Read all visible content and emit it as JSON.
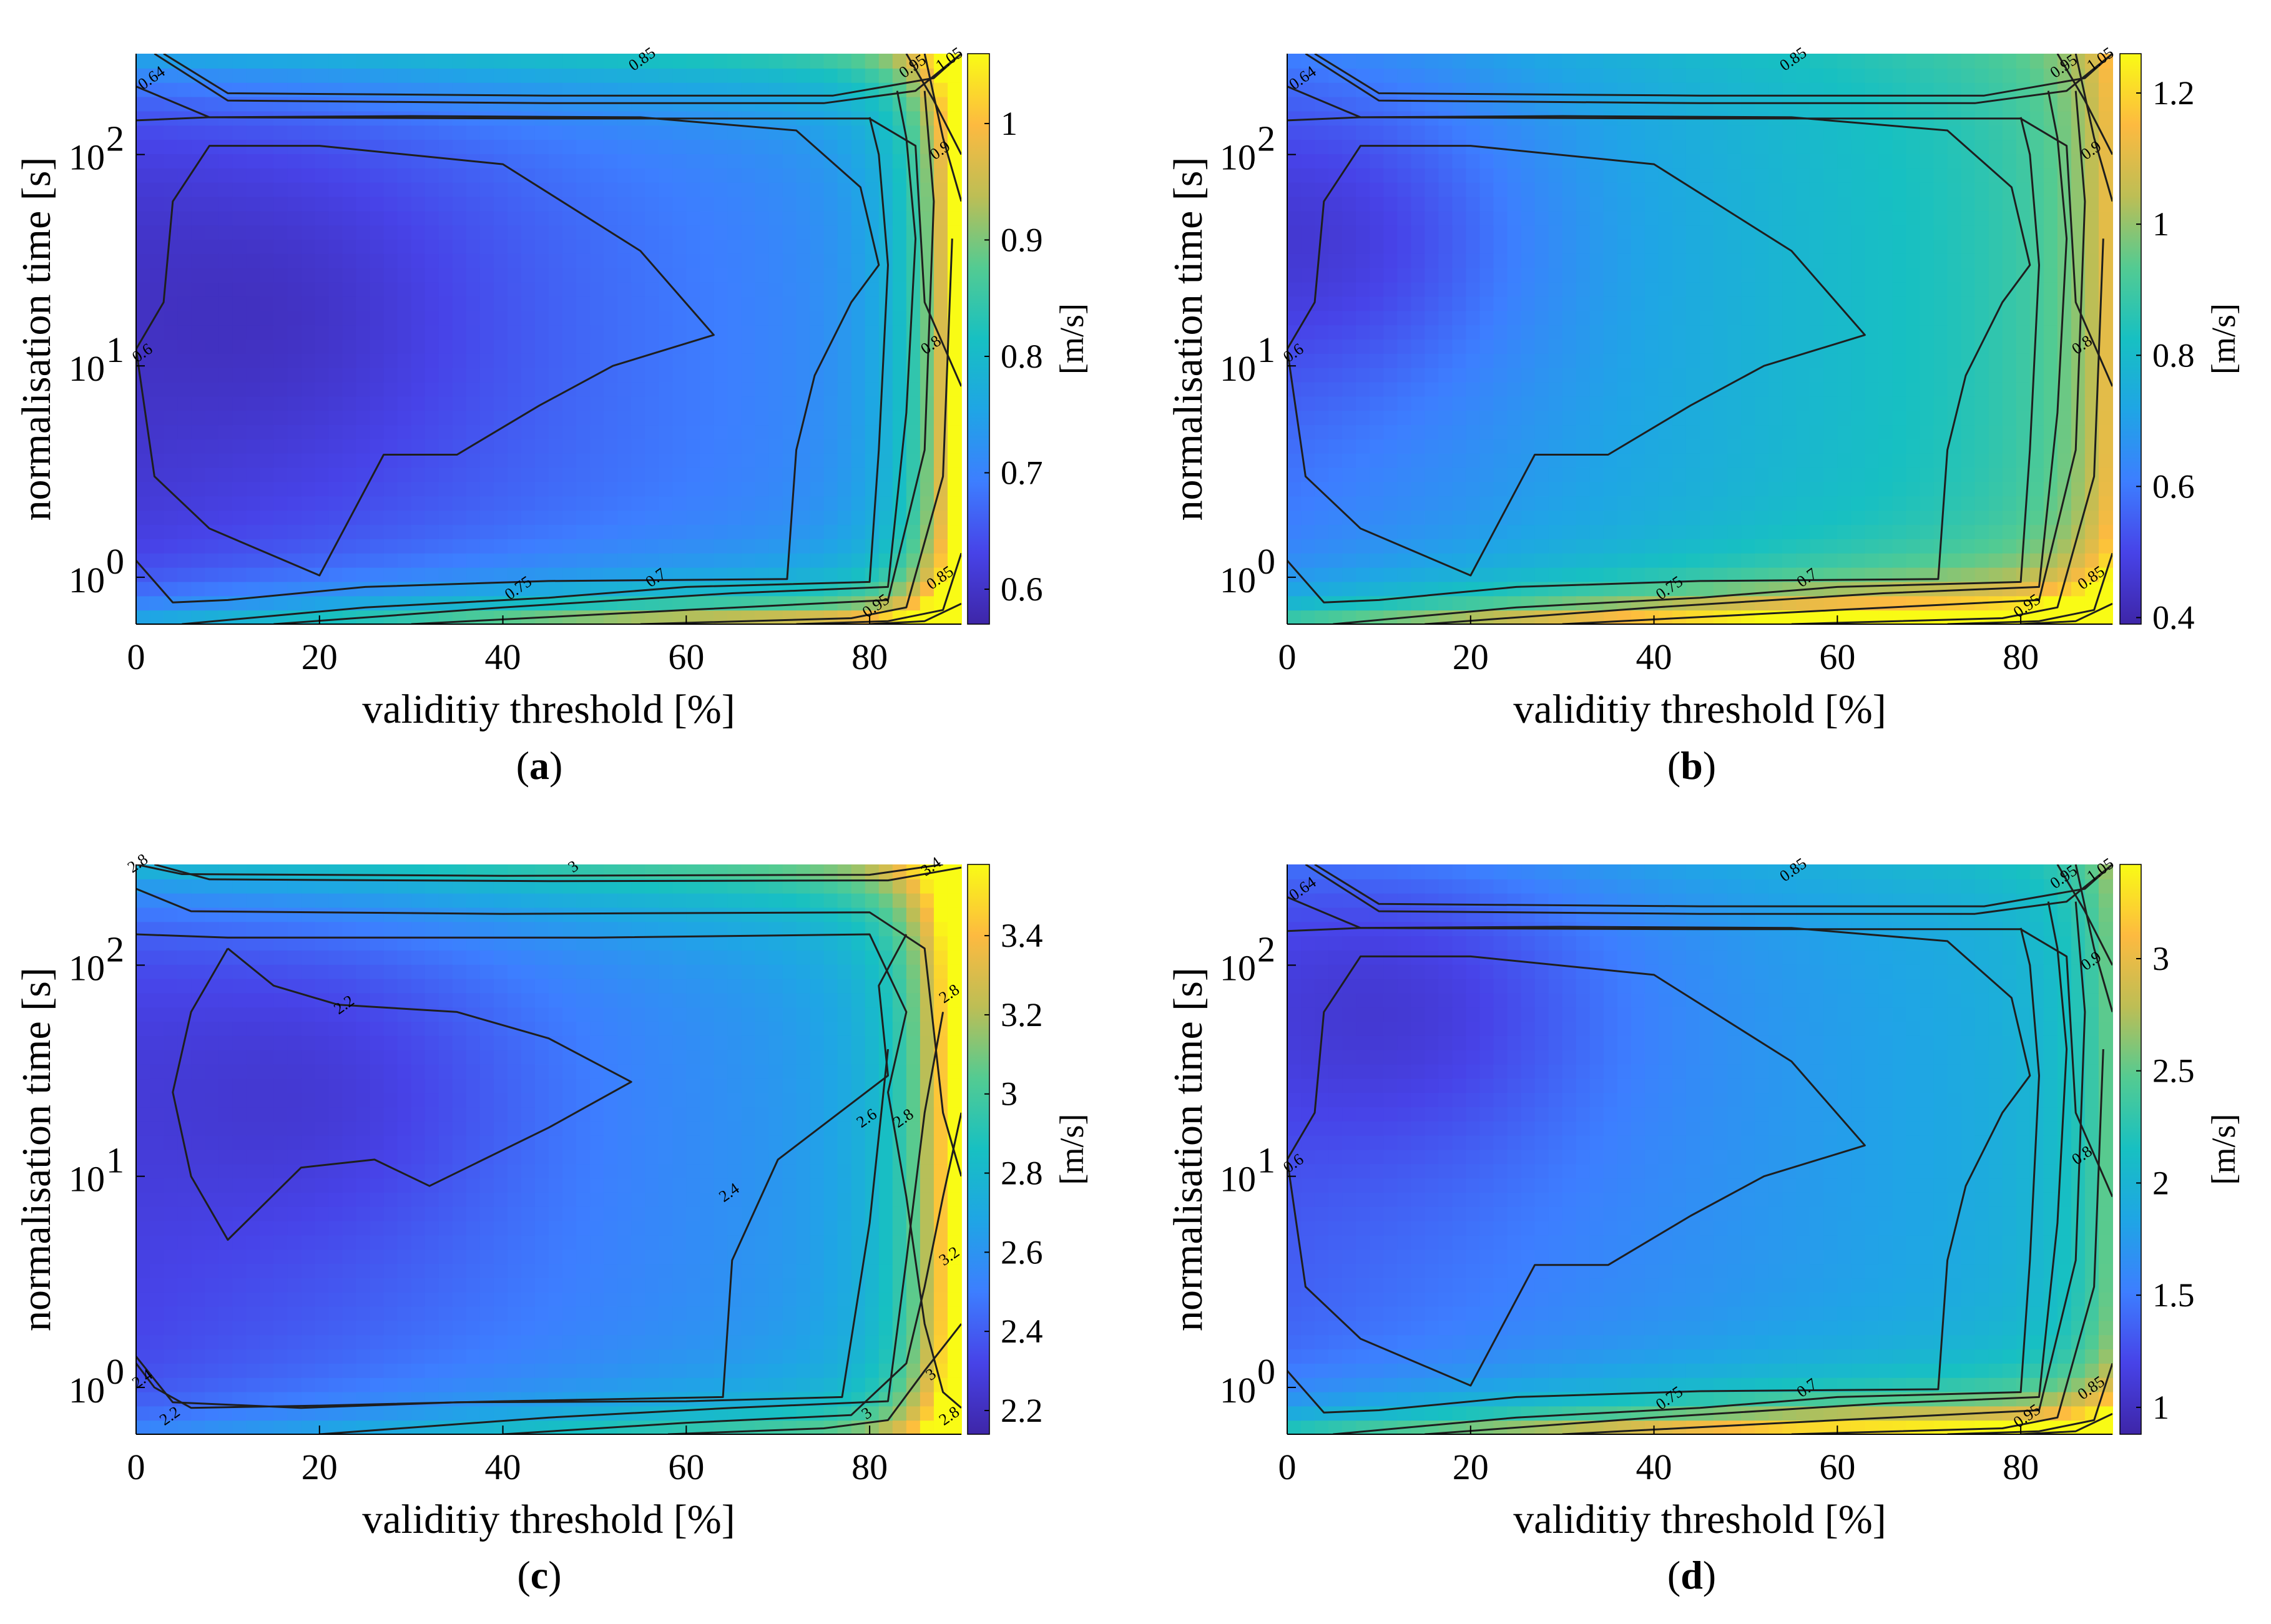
{
  "figure_type": "contour panels",
  "colors": {
    "colormap": [
      "#3e26a8",
      "#4743e8",
      "#3d7eff",
      "#1fa5e5",
      "#17c0c2",
      "#53cb92",
      "#bdbe55",
      "#fdba40",
      "#f9fb15"
    ],
    "contour_line": "#1e1e1e",
    "axis": "#000000"
  },
  "chart_data": [
    {
      "type": "heatmap",
      "subtype": "filled contour",
      "caption_letter": "a",
      "xlabel": "validitiy threshold [%]",
      "ylabel": "normalisation time [s]",
      "colorbar_label": "[m/s]",
      "xlim": [
        0,
        90
      ],
      "x_ticks": [
        0,
        20,
        40,
        60,
        80
      ],
      "x_tick_labels": [
        "0",
        "20",
        "40",
        "60",
        "80"
      ],
      "y_scale": "log",
      "ylim": [
        0.6,
        300
      ],
      "y_ticks": [
        1,
        10,
        100
      ],
      "y_tick_labels": [
        "10",
        "10",
        "10"
      ],
      "y_tick_exponents": [
        "0",
        "1",
        "2"
      ],
      "clim": [
        0.57,
        1.06
      ],
      "colorbar_ticks": [
        0.6,
        0.7,
        0.8,
        0.9,
        1.0
      ],
      "colorbar_tick_labels": [
        "0.6",
        "0.7",
        "0.8",
        "0.9",
        "1"
      ],
      "contour_labels": [
        {
          "text": "0.85",
          "x": 55.5,
          "y": 270
        },
        {
          "text": "0.64",
          "x": 2,
          "y": 220
        },
        {
          "text": "1.05",
          "x": 89,
          "y": 270
        },
        {
          "text": "0.95",
          "x": 85,
          "y": 250
        },
        {
          "text": "0.9",
          "x": 88,
          "y": 100
        },
        {
          "text": "0.6",
          "x": 1,
          "y": 11
        },
        {
          "text": "0.8",
          "x": 87,
          "y": 12
        },
        {
          "text": "0.75",
          "x": 42,
          "y": 0.85
        },
        {
          "text": "0.7",
          "x": 57,
          "y": 0.95
        },
        {
          "text": "0.85",
          "x": 88,
          "y": 0.95
        },
        {
          "text": "0.95",
          "x": 81,
          "y": 0.7
        }
      ],
      "field_model": {
        "base": 0.615,
        "basin_x": 18,
        "basin_logy": 1.25,
        "basin_depth": 0.04,
        "right_edge_rise": 0.4,
        "low_edge_rise": 0.3,
        "top_edge_rise": 0.15,
        "mid_slope": 0.0012
      }
    },
    {
      "type": "heatmap",
      "subtype": "filled contour",
      "caption_letter": "b",
      "xlabel": "validitiy threshold [%]",
      "ylabel": "normalisation time [s]",
      "colorbar_label": "[m/s]",
      "xlim": [
        0,
        90
      ],
      "x_ticks": [
        0,
        20,
        40,
        60,
        80
      ],
      "x_tick_labels": [
        "0",
        "20",
        "40",
        "60",
        "80"
      ],
      "y_scale": "log",
      "ylim": [
        0.6,
        300
      ],
      "y_ticks": [
        1,
        10,
        100
      ],
      "y_tick_labels": [
        "10",
        "10",
        "10"
      ],
      "y_tick_exponents": [
        "0",
        "1",
        "2"
      ],
      "clim": [
        0.39,
        1.26
      ],
      "colorbar_ticks": [
        0.4,
        0.6,
        0.8,
        1.0,
        1.2
      ],
      "colorbar_tick_labels": [
        "0.4",
        "0.6",
        "0.8",
        "1",
        "1.2"
      ],
      "contour_labels": [
        {
          "text": "0.85",
          "x": 55.5,
          "y": 270
        },
        {
          "text": "0.64",
          "x": 2,
          "y": 220
        },
        {
          "text": "1.05",
          "x": 89,
          "y": 270
        },
        {
          "text": "0.95",
          "x": 85,
          "y": 250
        },
        {
          "text": "0.9",
          "x": 88,
          "y": 100
        },
        {
          "text": "0.6",
          "x": 1,
          "y": 11
        },
        {
          "text": "0.8",
          "x": 87,
          "y": 12
        },
        {
          "text": "0.75",
          "x": 42,
          "y": 0.85
        },
        {
          "text": "0.7",
          "x": 57,
          "y": 0.95
        },
        {
          "text": "0.85",
          "x": 88,
          "y": 0.95
        },
        {
          "text": "0.95",
          "x": 81,
          "y": 0.7
        }
      ],
      "field_model": {
        "base": 0.6,
        "basin_x": 6,
        "basin_logy": 1.6,
        "basin_depth": 0.15,
        "right_edge_rise": 0.25,
        "low_edge_rise": 0.62,
        "top_edge_rise": 0.05,
        "mid_slope": 0.0033
      }
    },
    {
      "type": "heatmap",
      "subtype": "filled contour",
      "caption_letter": "c",
      "xlabel": "validitiy threshold [%]",
      "ylabel": "normalisation time [s]",
      "colorbar_label": "[m/s]",
      "xlim": [
        0,
        90
      ],
      "x_ticks": [
        0,
        20,
        40,
        60,
        80
      ],
      "x_tick_labels": [
        "0",
        "20",
        "40",
        "60",
        "80"
      ],
      "y_scale": "log",
      "ylim": [
        0.6,
        300
      ],
      "y_ticks": [
        1,
        10,
        100
      ],
      "y_tick_labels": [
        "10",
        "10",
        "10"
      ],
      "y_tick_exponents": [
        "0",
        "1",
        "2"
      ],
      "clim": [
        2.14,
        3.58
      ],
      "colorbar_ticks": [
        2.2,
        2.4,
        2.6,
        2.8,
        3.0,
        3.2,
        3.4
      ],
      "colorbar_tick_labels": [
        "2.2",
        "2.4",
        "2.6",
        "2.8",
        "3",
        "3.2",
        "3.4"
      ],
      "contour_labels": [
        {
          "text": "2.8",
          "x": 0.5,
          "y": 290
        },
        {
          "text": "3",
          "x": 48,
          "y": 280
        },
        {
          "text": "3.4",
          "x": 87,
          "y": 280
        },
        {
          "text": "2.2",
          "x": 23,
          "y": 62
        },
        {
          "text": "2.8",
          "x": 89,
          "y": 70
        },
        {
          "text": "2.6",
          "x": 80,
          "y": 18
        },
        {
          "text": "2.8",
          "x": 84,
          "y": 18
        },
        {
          "text": "2.4",
          "x": 65,
          "y": 8
        },
        {
          "text": "3.2",
          "x": 89,
          "y": 4
        },
        {
          "text": "3",
          "x": 87,
          "y": 1.1
        },
        {
          "text": "2.8",
          "x": 89,
          "y": 0.7
        },
        {
          "text": "3",
          "x": 80,
          "y": 0.72
        },
        {
          "text": "2.2",
          "x": 4,
          "y": 0.7
        },
        {
          "text": "2.4",
          "x": 1,
          "y": 1.05
        }
      ],
      "field_model": {
        "base": 2.32,
        "basin_x": 22,
        "basin_logy": 1.4,
        "basin_depth": 0.14,
        "right_edge_rise": 1.25,
        "low_edge_rise": 0.45,
        "top_edge_rise": 0.5,
        "mid_slope": 0.004
      }
    },
    {
      "type": "heatmap",
      "subtype": "filled contour",
      "caption_letter": "d",
      "xlabel": "validitiy threshold [%]",
      "ylabel": "normalisation time [s]",
      "colorbar_label": "[m/s]",
      "xlim": [
        0,
        90
      ],
      "x_ticks": [
        0,
        20,
        40,
        60,
        80
      ],
      "x_tick_labels": [
        "0",
        "20",
        "40",
        "60",
        "80"
      ],
      "y_scale": "log",
      "ylim": [
        0.6,
        300
      ],
      "y_ticks": [
        1,
        10,
        100
      ],
      "y_tick_labels": [
        "10",
        "10",
        "10"
      ],
      "y_tick_exponents": [
        "0",
        "1",
        "2"
      ],
      "clim": [
        0.88,
        3.42
      ],
      "colorbar_ticks": [
        1.0,
        1.5,
        2.0,
        2.5,
        3.0
      ],
      "colorbar_tick_labels": [
        "1",
        "1.5",
        "2",
        "2.5",
        "3"
      ],
      "contour_labels": [
        {
          "text": "0.85",
          "x": 55.5,
          "y": 270
        },
        {
          "text": "0.64",
          "x": 2,
          "y": 220
        },
        {
          "text": "1.05",
          "x": 89,
          "y": 270
        },
        {
          "text": "0.95",
          "x": 85,
          "y": 250
        },
        {
          "text": "0.9",
          "x": 88,
          "y": 100
        },
        {
          "text": "0.6",
          "x": 1,
          "y": 11
        },
        {
          "text": "0.8",
          "x": 87,
          "y": 12
        },
        {
          "text": "0.75",
          "x": 42,
          "y": 0.85
        },
        {
          "text": "0.7",
          "x": 57,
          "y": 0.95
        },
        {
          "text": "0.85",
          "x": 88,
          "y": 0.95
        },
        {
          "text": "0.95",
          "x": 81,
          "y": 0.7
        }
      ],
      "field_model": {
        "base": 1.35,
        "basin_x": 14,
        "basin_logy": 1.8,
        "basin_depth": 0.35,
        "right_edge_rise": 0.6,
        "low_edge_rise": 1.85,
        "top_edge_rise": 0.2,
        "mid_slope": 0.007
      }
    }
  ],
  "contour_lines": [
    [
      [
        2,
        300
      ],
      [
        10,
        180
      ],
      [
        45,
        175
      ],
      [
        75,
        175
      ],
      [
        85,
        200
      ],
      [
        90,
        300
      ]
    ],
    [
      [
        3,
        300
      ],
      [
        10,
        195
      ],
      [
        45,
        190
      ],
      [
        76,
        190
      ],
      [
        87,
        230
      ],
      [
        90,
        300
      ]
    ],
    [
      [
        0,
        210
      ],
      [
        8,
        150
      ],
      [
        45,
        148
      ],
      [
        80,
        148
      ],
      [
        85,
        110
      ],
      [
        86,
        20
      ],
      [
        90,
        8
      ]
    ],
    [
      [
        0,
        12
      ],
      [
        2,
        3
      ],
      [
        8,
        1.7
      ],
      [
        20,
        1.02
      ],
      [
        27,
        3.8
      ],
      [
        35,
        3.8
      ],
      [
        44,
        6.5
      ],
      [
        52,
        10
      ],
      [
        63,
        14
      ],
      [
        55,
        35
      ],
      [
        40,
        90
      ],
      [
        20,
        110
      ],
      [
        8,
        110
      ],
      [
        4,
        60
      ],
      [
        3,
        20
      ],
      [
        0,
        12
      ]
    ],
    [
      [
        0,
        1.2
      ],
      [
        4,
        0.76
      ],
      [
        10,
        0.78
      ],
      [
        25,
        0.9
      ],
      [
        45,
        0.96
      ],
      [
        71,
        0.98
      ],
      [
        72,
        4
      ],
      [
        74,
        9
      ],
      [
        78,
        20
      ],
      [
        81,
        30
      ],
      [
        79,
        70
      ],
      [
        72,
        130
      ],
      [
        55,
        150
      ],
      [
        30,
        152
      ],
      [
        8,
        150
      ],
      [
        0,
        145
      ]
    ],
    [
      [
        5,
        0.6
      ],
      [
        25,
        0.72
      ],
      [
        45,
        0.8
      ],
      [
        60,
        0.9
      ],
      [
        80,
        0.95
      ],
      [
        81,
        4
      ],
      [
        82,
        30
      ],
      [
        81,
        100
      ],
      [
        80,
        150
      ]
    ],
    [
      [
        15,
        0.6
      ],
      [
        40,
        0.72
      ],
      [
        65,
        0.84
      ],
      [
        82,
        0.9
      ],
      [
        84,
        6
      ],
      [
        85,
        40
      ],
      [
        84,
        120
      ],
      [
        83,
        200
      ]
    ],
    [
      [
        30,
        0.6
      ],
      [
        60,
        0.7
      ],
      [
        82,
        0.78
      ],
      [
        86,
        4
      ],
      [
        87,
        60
      ],
      [
        86,
        200
      ]
    ],
    [
      [
        55,
        0.6
      ],
      [
        78,
        0.64
      ],
      [
        84,
        0.72
      ],
      [
        88,
        3
      ],
      [
        89,
        40
      ]
    ],
    [
      [
        72,
        0.6
      ],
      [
        82,
        0.62
      ],
      [
        88,
        0.7
      ],
      [
        90,
        1.3
      ]
    ],
    [
      [
        80,
        0.6
      ],
      [
        86,
        0.62
      ],
      [
        90,
        0.75
      ]
    ],
    [
      [
        86,
        300
      ],
      [
        88,
        120
      ],
      [
        90,
        60
      ]
    ],
    [
      [
        84,
        300
      ],
      [
        87,
        180
      ],
      [
        90,
        100
      ]
    ]
  ],
  "contour_lines_c": [
    [
      [
        0,
        300
      ],
      [
        5,
        270
      ],
      [
        40,
        265
      ],
      [
        80,
        268
      ],
      [
        88,
        300
      ]
    ],
    [
      [
        2,
        300
      ],
      [
        8,
        255
      ],
      [
        45,
        250
      ],
      [
        82,
        252
      ],
      [
        90,
        290
      ]
    ],
    [
      [
        0,
        230
      ],
      [
        6,
        180
      ],
      [
        40,
        175
      ],
      [
        80,
        178
      ],
      [
        86,
        120
      ],
      [
        88,
        20
      ],
      [
        90,
        10
      ]
    ],
    [
      [
        0,
        140
      ],
      [
        10,
        135
      ],
      [
        50,
        135
      ],
      [
        80,
        140
      ],
      [
        84,
        60
      ],
      [
        82,
        25
      ],
      [
        84,
        8
      ],
      [
        86,
        2
      ],
      [
        88,
        0.95
      ],
      [
        90,
        0.8
      ]
    ],
    [
      [
        10,
        120
      ],
      [
        15,
        80
      ],
      [
        22,
        65
      ],
      [
        35,
        60
      ],
      [
        45,
        45
      ],
      [
        54,
        28
      ],
      [
        45,
        17
      ],
      [
        32,
        9
      ],
      [
        26,
        12
      ],
      [
        18,
        11
      ],
      [
        10,
        5
      ],
      [
        6,
        10
      ],
      [
        4,
        25
      ],
      [
        6,
        60
      ],
      [
        10,
        120
      ]
    ],
    [
      [
        0,
        1.3
      ],
      [
        2,
        1.0
      ],
      [
        6,
        0.8
      ],
      [
        20,
        0.82
      ],
      [
        40,
        0.86
      ],
      [
        64,
        0.9
      ],
      [
        65,
        4
      ],
      [
        70,
        12
      ],
      [
        82,
        30
      ],
      [
        81,
        80
      ],
      [
        84,
        140
      ]
    ],
    [
      [
        0,
        1.4
      ],
      [
        4,
        0.85
      ],
      [
        18,
        0.8
      ],
      [
        35,
        0.85
      ],
      [
        60,
        0.86
      ],
      [
        77,
        0.9
      ],
      [
        80,
        6
      ],
      [
        82,
        40
      ]
    ],
    [
      [
        20,
        0.6
      ],
      [
        45,
        0.72
      ],
      [
        65,
        0.8
      ],
      [
        82,
        0.86
      ],
      [
        84,
        4
      ],
      [
        86,
        20
      ],
      [
        88,
        60
      ]
    ],
    [
      [
        40,
        0.6
      ],
      [
        60,
        0.68
      ],
      [
        78,
        0.74
      ],
      [
        84,
        1.3
      ],
      [
        86,
        3
      ],
      [
        88,
        8
      ],
      [
        90,
        20
      ]
    ],
    [
      [
        58,
        0.6
      ],
      [
        75,
        0.64
      ],
      [
        82,
        0.7
      ],
      [
        86,
        1.2
      ],
      [
        90,
        2
      ]
    ]
  ]
}
